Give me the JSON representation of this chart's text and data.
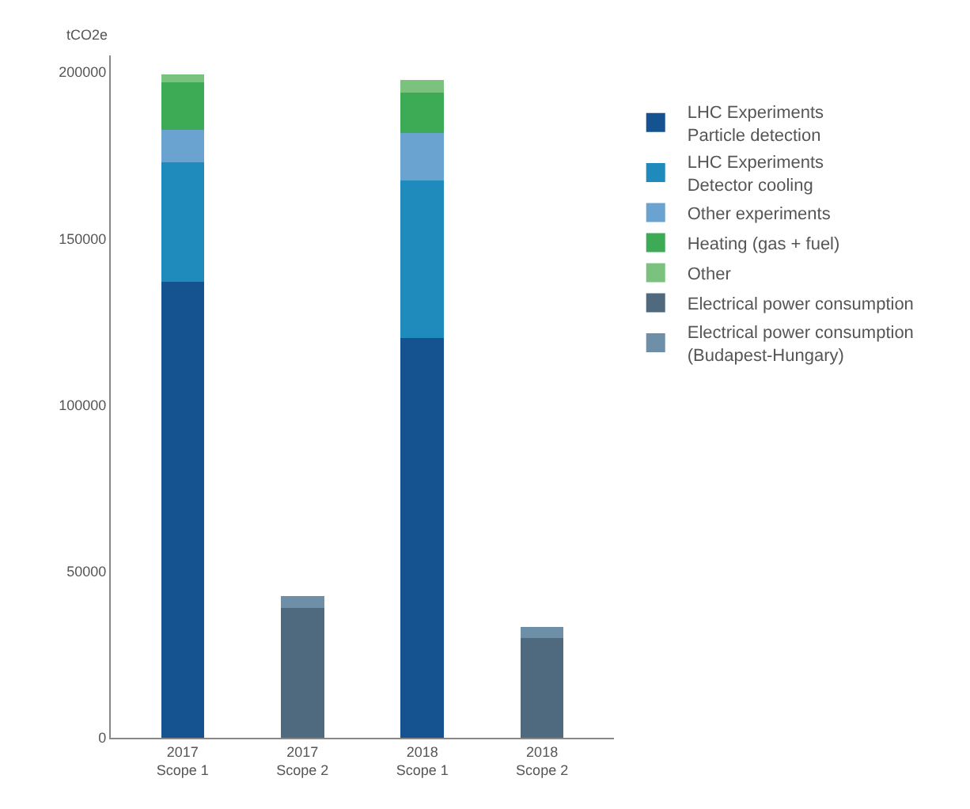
{
  "chart_data": {
    "type": "bar",
    "stacked": true,
    "ylabel": "tCO2e",
    "categories": [
      "2017\nScope 1",
      "2017\nScope 2",
      "2018\nScope 1",
      "2018\nScope 2"
    ],
    "series": [
      {
        "name": "LHC Experiments\nParticle detection",
        "color": "#155290",
        "values": [
          137000,
          null,
          120000,
          null
        ]
      },
      {
        "name": "LHC Experiments\nDetector cooling",
        "color": "#1f8bbd",
        "values": [
          36000,
          null,
          47500,
          null
        ]
      },
      {
        "name": "Other experiments",
        "color": "#6aa3cf",
        "values": [
          9700,
          null,
          14300,
          null
        ]
      },
      {
        "name": "Heating (gas + fuel)",
        "color": "#3daa55",
        "values": [
          14300,
          null,
          12000,
          null
        ]
      },
      {
        "name": "Other",
        "color": "#7ac27d",
        "values": [
          2300,
          null,
          3800,
          null
        ]
      },
      {
        "name": "Electrical power consumption",
        "color": "#4f6a7e",
        "values": [
          null,
          39000,
          null,
          30000
        ]
      },
      {
        "name": "Electrical power consumption\n(Budapest-Hungary)",
        "color": "#6d8fa8",
        "values": [
          null,
          3500,
          null,
          3200
        ]
      }
    ],
    "ylim": [
      0,
      205000
    ],
    "yticks": [
      0,
      50000,
      100000,
      150000,
      200000
    ],
    "grid": false,
    "legend": "right"
  }
}
